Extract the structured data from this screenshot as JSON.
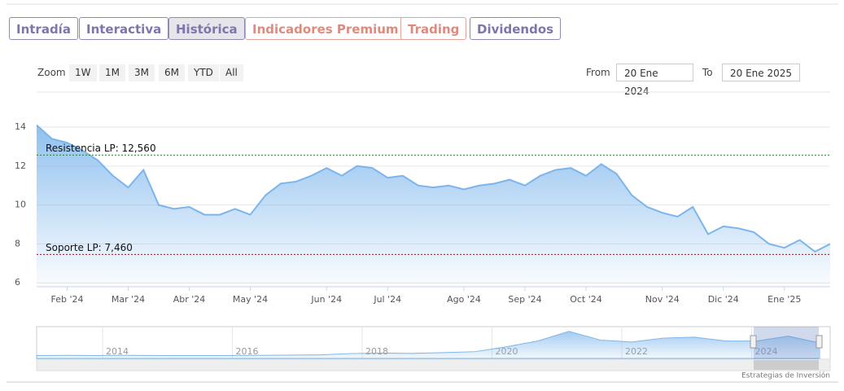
{
  "tabs": [
    "Intradía",
    "Interactiva",
    "Histórica",
    "Indicadores Premium",
    "Trading",
    "Dividendos"
  ],
  "controls": {
    "zoom_label": "Zoom",
    "zoom_buttons": [
      "1W",
      "1M",
      "3M",
      "6M",
      "YTD",
      "All"
    ],
    "from_label": "From",
    "from_value": "20 Ene 2024",
    "to_label": "To",
    "to_value": "20 Ene 2025"
  },
  "credit": "Estrategias de Inversión",
  "chart_data": {
    "type": "area",
    "color": "#7cb5ec",
    "grid": true,
    "categories": [
      null,
      null,
      "Feb '24",
      null,
      null,
      null,
      "Mar '24",
      null,
      null,
      null,
      "Abr '24",
      null,
      null,
      null,
      "May '24",
      null,
      null,
      null,
      null,
      "Jun '24",
      null,
      null,
      null,
      "Jul '24",
      null,
      null,
      null,
      null,
      "Ago '24",
      null,
      null,
      null,
      "Sep '24",
      null,
      null,
      null,
      "Oct '24",
      null,
      null,
      null,
      null,
      "Nov '24",
      null,
      null,
      null,
      "Dic '24",
      null,
      null,
      null,
      "Ene '25",
      null,
      null,
      null
    ],
    "values": [
      14.1,
      13.4,
      13.2,
      12.8,
      12.3,
      11.5,
      10.9,
      11.8,
      10.0,
      9.8,
      9.9,
      9.5,
      9.5,
      9.8,
      9.5,
      10.5,
      11.1,
      11.2,
      11.5,
      11.9,
      11.5,
      12.0,
      11.9,
      11.4,
      11.5,
      11.0,
      10.9,
      11.0,
      10.8,
      11.0,
      11.1,
      11.3,
      11.0,
      11.5,
      11.8,
      11.9,
      11.5,
      12.1,
      11.6,
      10.5,
      9.9,
      9.6,
      9.4,
      9.9,
      8.5,
      8.9,
      8.8,
      8.6,
      8.0,
      7.8,
      8.2,
      7.6,
      8.0
    ],
    "ylim": [
      5.8,
      15.8
    ],
    "yticks": [
      6,
      8,
      10,
      12,
      14
    ],
    "annotations": [
      {
        "label": "Resistencia LP: 12,560",
        "value": 12.56,
        "color": "#2e7d32"
      },
      {
        "label": "Soporte LP: 7,460",
        "value": 7.46,
        "color": "#8b1a1a"
      }
    ]
  },
  "navigator": {
    "labels": [
      "2014",
      "2016",
      "2018",
      "2020",
      "2022",
      "2024"
    ],
    "values": [
      1.5,
      1.6,
      1.5,
      1.6,
      1.5,
      1.5,
      1.5,
      1.6,
      1.7,
      1.8,
      2.5,
      2.8,
      2.6,
      3.0,
      3.5,
      6.0,
      9.0,
      14.0,
      9.5,
      8.5,
      10.5,
      11.0,
      9.0,
      9.0,
      11.5,
      8.0
    ],
    "ylim": [
      0,
      16
    ]
  }
}
